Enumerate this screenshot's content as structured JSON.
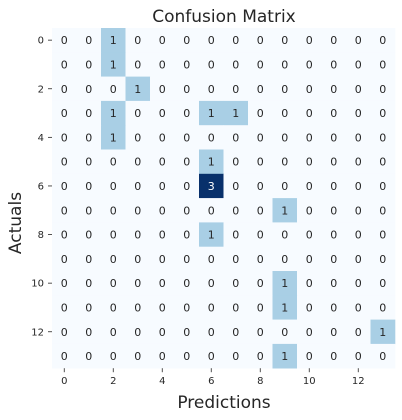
{
  "chart_data": {
    "type": "heatmap",
    "title": "Confusion Matrix",
    "xlabel": "Predictions",
    "ylabel": "Actuals",
    "x_ticks": [
      0,
      2,
      4,
      6,
      8,
      10,
      12
    ],
    "y_ticks": [
      0,
      2,
      4,
      6,
      8,
      10,
      12
    ],
    "rows": 14,
    "cols": 14,
    "matrix": [
      [
        0,
        0,
        1,
        0,
        0,
        0,
        0,
        0,
        0,
        0,
        0,
        0,
        0,
        0
      ],
      [
        0,
        0,
        1,
        0,
        0,
        0,
        0,
        0,
        0,
        0,
        0,
        0,
        0,
        0
      ],
      [
        0,
        0,
        0,
        1,
        0,
        0,
        0,
        0,
        0,
        0,
        0,
        0,
        0,
        0
      ],
      [
        0,
        0,
        1,
        0,
        0,
        0,
        1,
        1,
        0,
        0,
        0,
        0,
        0,
        0
      ],
      [
        0,
        0,
        1,
        0,
        0,
        0,
        0,
        0,
        0,
        0,
        0,
        0,
        0,
        0
      ],
      [
        0,
        0,
        0,
        0,
        0,
        0,
        1,
        0,
        0,
        0,
        0,
        0,
        0,
        0
      ],
      [
        0,
        0,
        0,
        0,
        0,
        0,
        3,
        0,
        0,
        0,
        0,
        0,
        0,
        0
      ],
      [
        0,
        0,
        0,
        0,
        0,
        0,
        0,
        0,
        0,
        1,
        0,
        0,
        0,
        0
      ],
      [
        0,
        0,
        0,
        0,
        0,
        0,
        1,
        0,
        0,
        0,
        0,
        0,
        0,
        0
      ],
      [
        0,
        0,
        0,
        0,
        0,
        0,
        0,
        0,
        0,
        0,
        0,
        0,
        0,
        0
      ],
      [
        0,
        0,
        0,
        0,
        0,
        0,
        0,
        0,
        0,
        1,
        0,
        0,
        0,
        0
      ],
      [
        0,
        0,
        0,
        0,
        0,
        0,
        0,
        0,
        0,
        1,
        0,
        0,
        0,
        0
      ],
      [
        0,
        0,
        0,
        0,
        0,
        0,
        0,
        0,
        0,
        0,
        0,
        0,
        0,
        1
      ],
      [
        0,
        0,
        0,
        0,
        0,
        0,
        0,
        0,
        0,
        1,
        0,
        0,
        0,
        0
      ]
    ],
    "colormap": "Blues",
    "colors": {
      "zero": "#f7fbff",
      "one": "#a9cfe5",
      "max": "#08306b"
    },
    "colorbar": false,
    "grid": false
  }
}
